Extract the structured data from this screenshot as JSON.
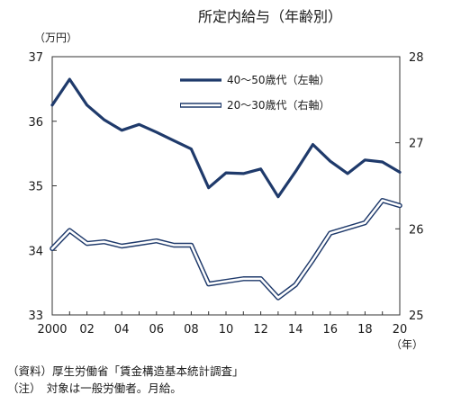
{
  "chart_data": {
    "type": "line",
    "title": "所定内給与（年齢別）",
    "left_axis": {
      "unit": "（万円）",
      "ylim": [
        33,
        37
      ],
      "ticks": [
        "33",
        "34",
        "35",
        "36",
        "37"
      ]
    },
    "right_axis": {
      "ylim": [
        25,
        28
      ],
      "ticks": [
        "25",
        "26",
        "27",
        "28"
      ]
    },
    "x_axis": {
      "unit": "（年）",
      "xlim": [
        2000,
        2020
      ],
      "tick_labels": [
        "2000",
        "02",
        "04",
        "06",
        "08",
        "10",
        "12",
        "14",
        "16",
        "18",
        "20"
      ]
    },
    "x": [
      2000,
      2001,
      2002,
      2003,
      2004,
      2005,
      2006,
      2007,
      2008,
      2009,
      2010,
      2011,
      2012,
      2013,
      2014,
      2015,
      2016,
      2017,
      2018,
      2019,
      2020
    ],
    "series": [
      {
        "name": "40～50歳代（左軸）",
        "axis": "left",
        "color": "#1f3a6b",
        "values": [
          36.25,
          36.65,
          36.25,
          36.02,
          35.86,
          35.95,
          35.83,
          35.7,
          35.57,
          34.97,
          35.2,
          35.19,
          35.26,
          34.83,
          35.22,
          35.64,
          35.38,
          35.19,
          35.4,
          35.37,
          35.21
        ]
      },
      {
        "name": "20～30歳代（右軸）",
        "axis": "right",
        "color": "#1f3a6b",
        "values": [
          25.77,
          25.98,
          25.83,
          25.85,
          25.8,
          25.83,
          25.86,
          25.81,
          25.81,
          25.36,
          25.39,
          25.42,
          25.42,
          25.2,
          25.35,
          25.64,
          25.95,
          26.01,
          26.07,
          26.33,
          26.27
        ]
      }
    ],
    "legend_position": "top-right",
    "grid": false
  },
  "footnotes": {
    "source": "（資料）厚生労働省「賃金構造基本統計調査」",
    "note": "（注）　対象は一般労働者。月給。"
  }
}
